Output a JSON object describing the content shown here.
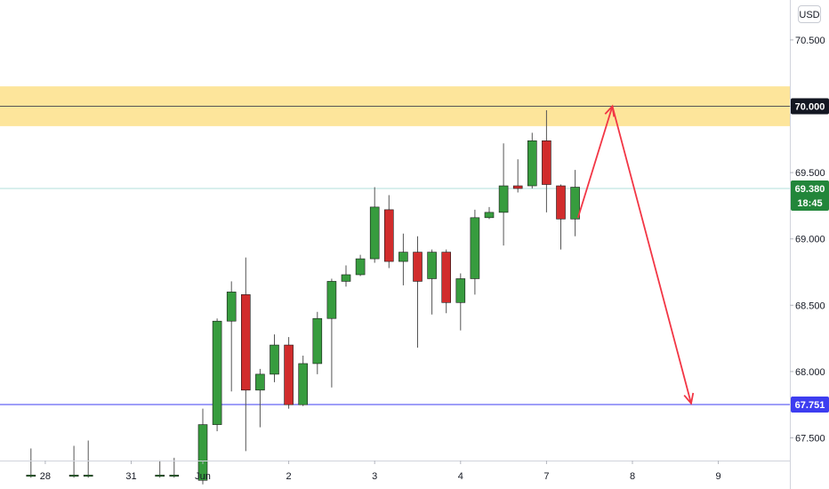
{
  "currency_button": {
    "label": "USD"
  },
  "chart_data": {
    "type": "candlestick",
    "y_range": [
      67.2,
      70.72
    ],
    "price_ticks": [
      "67.500",
      "68.000",
      "68.500",
      "69.000",
      "69.500",
      "70.000",
      "70.500"
    ],
    "x_labels": [
      {
        "label": "28",
        "bar": -11
      },
      {
        "label": "31",
        "bar": -5
      },
      {
        "label": "Jun",
        "bar": 0
      },
      {
        "label": "2",
        "bar": 6
      },
      {
        "label": "3",
        "bar": 12
      },
      {
        "label": "4",
        "bar": 18
      },
      {
        "label": "7",
        "bar": 24
      },
      {
        "label": "8",
        "bar": 30
      },
      {
        "label": "9",
        "bar": 36
      }
    ],
    "candles": [
      {
        "bar": -12,
        "o": 67.22,
        "h": 67.42,
        "l": 67.2,
        "c": 67.22,
        "up": true
      },
      {
        "bar": -9,
        "o": 67.22,
        "h": 67.44,
        "l": 67.2,
        "c": 67.22,
        "up": true
      },
      {
        "bar": -8,
        "o": 67.22,
        "h": 67.48,
        "l": 67.2,
        "c": 67.22,
        "up": true
      },
      {
        "bar": -3,
        "o": 67.22,
        "h": 67.33,
        "l": 67.2,
        "c": 67.22,
        "up": true
      },
      {
        "bar": -2,
        "o": 67.22,
        "h": 67.35,
        "l": 67.2,
        "c": 67.22,
        "up": true
      },
      {
        "bar": 0,
        "o": 67.18,
        "h": 67.72,
        "l": 67.15,
        "c": 67.6,
        "up": true
      },
      {
        "bar": 1,
        "o": 67.6,
        "h": 68.4,
        "l": 67.55,
        "c": 68.38,
        "up": true
      },
      {
        "bar": 2,
        "o": 68.38,
        "h": 68.68,
        "l": 67.85,
        "c": 68.6,
        "up": true
      },
      {
        "bar": 3,
        "o": 68.58,
        "h": 68.86,
        "l": 67.4,
        "c": 67.86,
        "up": false
      },
      {
        "bar": 4,
        "o": 67.86,
        "h": 68.02,
        "l": 67.58,
        "c": 67.98,
        "up": true
      },
      {
        "bar": 5,
        "o": 67.98,
        "h": 68.28,
        "l": 67.92,
        "c": 68.2,
        "up": true
      },
      {
        "bar": 6,
        "o": 68.2,
        "h": 68.26,
        "l": 67.72,
        "c": 67.75,
        "up": false
      },
      {
        "bar": 7,
        "o": 67.75,
        "h": 68.12,
        "l": 67.74,
        "c": 68.06,
        "up": true
      },
      {
        "bar": 8,
        "o": 68.06,
        "h": 68.45,
        "l": 67.98,
        "c": 68.4,
        "up": true
      },
      {
        "bar": 9,
        "o": 68.4,
        "h": 68.7,
        "l": 67.88,
        "c": 68.68,
        "up": true
      },
      {
        "bar": 10,
        "o": 68.68,
        "h": 68.8,
        "l": 68.64,
        "c": 68.73,
        "up": true
      },
      {
        "bar": 11,
        "o": 68.73,
        "h": 68.88,
        "l": 68.72,
        "c": 68.85,
        "up": true
      },
      {
        "bar": 12,
        "o": 68.85,
        "h": 69.39,
        "l": 68.82,
        "c": 69.24,
        "up": true
      },
      {
        "bar": 13,
        "o": 69.22,
        "h": 69.33,
        "l": 68.78,
        "c": 68.83,
        "up": false
      },
      {
        "bar": 14,
        "o": 68.83,
        "h": 69.04,
        "l": 68.65,
        "c": 68.9,
        "up": true
      },
      {
        "bar": 15,
        "o": 68.9,
        "h": 69.02,
        "l": 68.18,
        "c": 68.68,
        "up": false
      },
      {
        "bar": 16,
        "o": 68.7,
        "h": 68.92,
        "l": 68.43,
        "c": 68.9,
        "up": true
      },
      {
        "bar": 17,
        "o": 68.9,
        "h": 68.92,
        "l": 68.44,
        "c": 68.52,
        "up": false
      },
      {
        "bar": 18,
        "o": 68.52,
        "h": 68.74,
        "l": 68.31,
        "c": 68.7,
        "up": true
      },
      {
        "bar": 19,
        "o": 68.7,
        "h": 69.22,
        "l": 68.58,
        "c": 69.16,
        "up": true
      },
      {
        "bar": 20,
        "o": 69.16,
        "h": 69.24,
        "l": 69.15,
        "c": 69.2,
        "up": true
      },
      {
        "bar": 21,
        "o": 69.2,
        "h": 69.72,
        "l": 68.95,
        "c": 69.4,
        "up": true
      },
      {
        "bar": 22,
        "o": 69.38,
        "h": 69.6,
        "l": 69.35,
        "c": 69.4,
        "up": false
      },
      {
        "bar": 23,
        "o": 69.4,
        "h": 69.8,
        "l": 69.38,
        "c": 69.74,
        "up": true
      },
      {
        "bar": 24,
        "o": 69.74,
        "h": 69.97,
        "l": 69.2,
        "c": 69.41,
        "up": false
      },
      {
        "bar": 25,
        "o": 69.4,
        "h": 69.41,
        "l": 68.92,
        "c": 69.15,
        "up": false
      },
      {
        "bar": 26,
        "o": 69.15,
        "h": 69.52,
        "l": 69.02,
        "c": 69.39,
        "up": true
      }
    ],
    "resistance_zone": {
      "low": 69.85,
      "high": 70.15,
      "line": 70.0,
      "color": "#fde59b",
      "line_color": "#555555"
    },
    "current_price_line": {
      "value": 69.38,
      "color": "#b2dfdb"
    },
    "support_line": {
      "value": 67.751,
      "color": "#3d3df0"
    },
    "projection": {
      "color": "#f23645",
      "points": [
        {
          "bar": 26.2,
          "price": 69.16
        },
        {
          "bar": 28.6,
          "price": 70.0
        },
        {
          "bar": 34.1,
          "price": 67.76
        }
      ]
    },
    "badges": {
      "resistance": {
        "label": "70.000",
        "color": "#131722"
      },
      "current_price": {
        "label": "69.380",
        "time": "18:45",
        "color": "#26a69a",
        "dark_color": "#22863a"
      },
      "support": {
        "label": "67.751",
        "color": "#3d3df0"
      }
    },
    "colors": {
      "up": "#379c3e",
      "down": "#d12c2c",
      "outline": "#1a1a1a",
      "wick": "#555555"
    }
  }
}
